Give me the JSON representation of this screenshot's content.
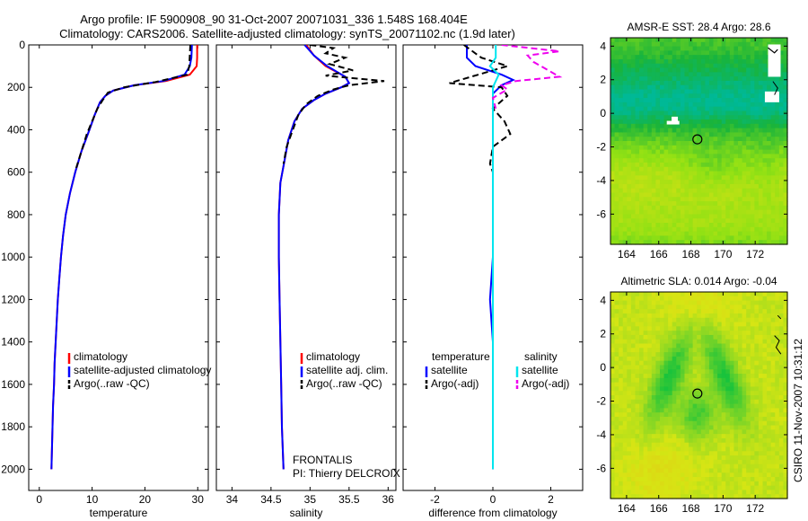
{
  "header": {
    "line1": "Argo profile: IF 5900908_90 31-Oct-2007 20071031_336 1.548S 168.404E",
    "line2": "Climatology: CARS2006. Satellite-adjusted climatology: synTS_20071102.nc (1.9d later)"
  },
  "side_label": "CSIRO 11-Nov-2007 10:31:12",
  "colors": {
    "red": "#ff0000",
    "blue": "#0000ff",
    "black": "#000000",
    "cyan": "#00e5ee",
    "magenta": "#ee00ee"
  },
  "chart_data": [
    {
      "type": "line",
      "xlabel": "temperature",
      "xlim": [
        -2,
        32
      ],
      "ylim": [
        0,
        2100
      ],
      "y_reversed": true,
      "xticks": [
        0,
        10,
        20,
        30
      ],
      "yticks": [
        0,
        200,
        400,
        600,
        800,
        1000,
        1200,
        1400,
        1600,
        1800,
        2000
      ],
      "legend": [
        "climatology",
        "satellite-adjusted climatology",
        "Argo(..raw -QC)"
      ],
      "series": [
        {
          "name": "climatology",
          "color": "red",
          "dash": false,
          "points": [
            [
              29.9,
              0
            ],
            [
              29.9,
              60
            ],
            [
              29.8,
              100
            ],
            [
              28.5,
              140
            ],
            [
              24,
              170
            ],
            [
              18,
              190
            ],
            [
              14,
              215
            ],
            [
              12.5,
              240
            ],
            [
              11.5,
              270
            ],
            [
              10.5,
              330
            ],
            [
              9.5,
              400
            ],
            [
              8,
              500
            ],
            [
              6.8,
              600
            ],
            [
              5.8,
              700
            ],
            [
              5,
              800
            ],
            [
              4.5,
              900
            ],
            [
              4.1,
              1000
            ],
            [
              3.8,
              1100
            ],
            [
              3.5,
              1200
            ],
            [
              3.3,
              1300
            ],
            [
              3.1,
              1400
            ],
            [
              2.9,
              1500
            ],
            [
              2.8,
              1600
            ],
            [
              2.6,
              1700
            ],
            [
              2.5,
              1800
            ],
            [
              2.4,
              1900
            ],
            [
              2.3,
              2000
            ]
          ]
        },
        {
          "name": "satellite-adjusted climatology",
          "color": "blue",
          "dash": false,
          "points": [
            [
              28.9,
              0
            ],
            [
              28.8,
              60
            ],
            [
              28.5,
              100
            ],
            [
              27.5,
              140
            ],
            [
              23.5,
              170
            ],
            [
              18,
              190
            ],
            [
              14,
              215
            ],
            [
              12.5,
              240
            ],
            [
              11.5,
              270
            ],
            [
              10.5,
              330
            ],
            [
              9.5,
              400
            ],
            [
              8,
              500
            ],
            [
              6.8,
              600
            ],
            [
              5.8,
              700
            ],
            [
              5,
              800
            ],
            [
              4.5,
              900
            ],
            [
              4.1,
              1000
            ],
            [
              3.8,
              1100
            ],
            [
              3.5,
              1200
            ],
            [
              3.3,
              1300
            ],
            [
              3.1,
              1400
            ],
            [
              2.9,
              1500
            ],
            [
              2.8,
              1600
            ],
            [
              2.6,
              1700
            ],
            [
              2.5,
              1800
            ],
            [
              2.4,
              1900
            ],
            [
              2.3,
              2000
            ]
          ]
        },
        {
          "name": "Argo(..raw -QC)",
          "color": "black",
          "dash": true,
          "points": [
            [
              28.6,
              0
            ],
            [
              28.5,
              50
            ],
            [
              28.4,
              100
            ],
            [
              28,
              140
            ],
            [
              22,
              175
            ],
            [
              16,
              200
            ],
            [
              13,
              225
            ],
            [
              12,
              260
            ],
            [
              11,
              300
            ],
            [
              10,
              360
            ],
            [
              9,
              420
            ],
            [
              8,
              500
            ],
            [
              7,
              580
            ]
          ]
        }
      ]
    },
    {
      "type": "line",
      "xlabel": "salinity",
      "xlim": [
        33.8,
        36.1
      ],
      "ylim": [
        0,
        2100
      ],
      "y_reversed": true,
      "xticks": [
        34,
        34.5,
        35,
        35.5,
        36
      ],
      "yticks": [
        0,
        200,
        400,
        600,
        800,
        1000,
        1200,
        1400,
        1600,
        1800,
        2000
      ],
      "legend": [
        "climatology",
        "satellite adj. clim.",
        "Argo(..raw -QC)"
      ],
      "annotations": [
        "FRONTALIS",
        "PI: Thierry DELCROIX"
      ],
      "series": [
        {
          "name": "climatology",
          "color": "red",
          "dash": false,
          "points": [
            [
              34.95,
              0
            ],
            [
              35.05,
              50
            ],
            [
              35.2,
              100
            ],
            [
              35.45,
              150
            ],
            [
              35.5,
              180
            ],
            [
              35.4,
              200
            ],
            [
              35.2,
              230
            ],
            [
              35.05,
              260
            ],
            [
              34.9,
              300
            ],
            [
              34.8,
              360
            ],
            [
              34.72,
              450
            ],
            [
              34.67,
              550
            ],
            [
              34.62,
              650
            ],
            [
              34.6,
              800
            ],
            [
              34.6,
              1000
            ],
            [
              34.61,
              1200
            ],
            [
              34.62,
              1400
            ],
            [
              34.63,
              1600
            ],
            [
              34.64,
              1800
            ],
            [
              34.66,
              2000
            ]
          ]
        },
        {
          "name": "satellite adj. clim.",
          "color": "blue",
          "dash": false,
          "points": [
            [
              34.93,
              0
            ],
            [
              35.05,
              50
            ],
            [
              35.22,
              100
            ],
            [
              35.45,
              150
            ],
            [
              35.5,
              180
            ],
            [
              35.4,
              200
            ],
            [
              35.2,
              230
            ],
            [
              35.05,
              260
            ],
            [
              34.9,
              300
            ],
            [
              34.8,
              360
            ],
            [
              34.72,
              450
            ],
            [
              34.67,
              550
            ],
            [
              34.62,
              650
            ],
            [
              34.6,
              800
            ],
            [
              34.6,
              1000
            ],
            [
              34.61,
              1200
            ],
            [
              34.62,
              1400
            ],
            [
              34.63,
              1600
            ],
            [
              34.64,
              1800
            ],
            [
              34.66,
              2000
            ]
          ]
        },
        {
          "name": "Argo(..raw -QC)",
          "color": "black",
          "dash": true,
          "points": [
            [
              35.0,
              0
            ],
            [
              35.3,
              15
            ],
            [
              35.2,
              40
            ],
            [
              35.45,
              60
            ],
            [
              35.25,
              90
            ],
            [
              35.55,
              120
            ],
            [
              35.2,
              145
            ],
            [
              35.95,
              170
            ],
            [
              35.5,
              190
            ],
            [
              35.3,
              210
            ],
            [
              35.1,
              240
            ],
            [
              34.95,
              280
            ],
            [
              34.85,
              330
            ],
            [
              34.78,
              400
            ],
            [
              34.7,
              480
            ],
            [
              34.66,
              560
            ]
          ]
        }
      ]
    },
    {
      "type": "line",
      "xlabel": "difference from climatology",
      "xlim": [
        -3.1,
        3.1
      ],
      "ylim": [
        0,
        2100
      ],
      "y_reversed": true,
      "xticks": [
        -2,
        0,
        2
      ],
      "yticks": [
        0,
        200,
        400,
        600,
        800,
        1000,
        1200,
        1400,
        1600,
        1800,
        2000
      ],
      "legend_left": [
        "temperature",
        "satellite",
        "Argo(-adj)"
      ],
      "legend_right": [
        "salinity",
        "satellite",
        "Argo(-adj)"
      ],
      "series": [
        {
          "name": "temperature satellite",
          "color": "blue",
          "dash": false,
          "points": [
            [
              -0.9,
              0
            ],
            [
              -0.9,
              60
            ],
            [
              -0.6,
              100
            ],
            [
              0.3,
              140
            ],
            [
              0.7,
              165
            ],
            [
              0.3,
              190
            ],
            [
              0,
              230
            ],
            [
              0,
              300
            ],
            [
              0,
              500
            ],
            [
              0,
              800
            ],
            [
              0,
              1000
            ],
            [
              -0.1,
              1200
            ],
            [
              0,
              1400
            ],
            [
              0,
              2000
            ]
          ]
        },
        {
          "name": "temperature Argo(-adj)",
          "color": "black",
          "dash": true,
          "points": [
            [
              -1,
              0
            ],
            [
              -0.4,
              60
            ],
            [
              0.5,
              100
            ],
            [
              -1,
              160
            ],
            [
              -1.5,
              180
            ],
            [
              0.3,
              200
            ],
            [
              0.5,
              240
            ],
            [
              0,
              300
            ],
            [
              0.4,
              360
            ],
            [
              0.6,
              420
            ],
            [
              0,
              480
            ],
            [
              -0.1,
              560
            ],
            [
              0,
              600
            ]
          ]
        },
        {
          "name": "salinity satellite",
          "color": "cyan",
          "dash": false,
          "points": [
            [
              0.1,
              0
            ],
            [
              0.1,
              60
            ],
            [
              -0.1,
              100
            ],
            [
              0.2,
              140
            ],
            [
              0,
              200
            ],
            [
              0,
              400
            ],
            [
              0,
              800
            ],
            [
              0,
              2000
            ]
          ]
        },
        {
          "name": "salinity Argo(-adj)",
          "color": "magenta",
          "dash": true,
          "points": [
            [
              0.3,
              0
            ],
            [
              2.3,
              30
            ],
            [
              1.2,
              50
            ],
            [
              1.4,
              80
            ],
            [
              2.3,
              150
            ],
            [
              0.8,
              170
            ],
            [
              0.3,
              190
            ],
            [
              0.5,
              210
            ],
            [
              0,
              250
            ],
            [
              0.1,
              300
            ]
          ]
        }
      ]
    },
    {
      "type": "heatmap",
      "title": "AMSR-E SST: 28.4 Argo: 28.6",
      "xlim": [
        163,
        174
      ],
      "ylim": [
        -7.8,
        4.5
      ],
      "xticks": [
        164,
        166,
        168,
        170,
        172
      ],
      "yticks": [
        -6,
        -4,
        -2,
        0,
        2,
        4
      ],
      "marker": [
        168.404,
        -1.548
      ]
    },
    {
      "type": "heatmap",
      "title": "Altimetric SLA: 0.014 Argo: -0.04",
      "xlim": [
        163,
        174
      ],
      "ylim": [
        -7.8,
        4.5
      ],
      "xticks": [
        164,
        166,
        168,
        170,
        172
      ],
      "yticks": [
        -6,
        -4,
        -2,
        0,
        2,
        4
      ],
      "marker": [
        168.404,
        -1.548
      ]
    }
  ]
}
